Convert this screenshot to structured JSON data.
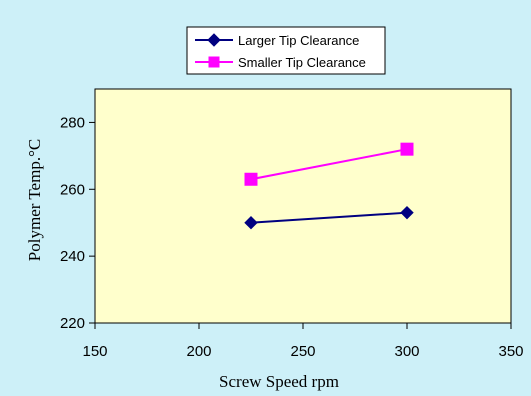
{
  "chart_data": {
    "type": "line",
    "title": "",
    "xlabel": "Screw Speed    rpm",
    "ylabel": "Polymer Temp.°C",
    "xlim": [
      150,
      350
    ],
    "ylim": [
      220,
      290
    ],
    "xticks": [
      150,
      200,
      250,
      300,
      350
    ],
    "yticks": [
      220,
      240,
      260,
      280
    ],
    "xtick_labels": [
      "150",
      "200",
      "250",
      "300",
      "350"
    ],
    "ytick_labels": [
      "220",
      "240",
      "260",
      "280"
    ],
    "grid": false,
    "legend_position": "top-center",
    "series": [
      {
        "name": "Larger Tip Clearance",
        "x": [
          225,
          300
        ],
        "y": [
          250,
          253
        ],
        "color": "#000080",
        "marker": "diamond"
      },
      {
        "name": "Smaller Tip Clearance",
        "x": [
          225,
          300
        ],
        "y": [
          263,
          272
        ],
        "color": "#ff00ff",
        "marker": "square"
      }
    ],
    "colors": {
      "figure_background": "#cdf0f8",
      "plot_background": "#ffffcc",
      "axis": "#000000"
    }
  }
}
